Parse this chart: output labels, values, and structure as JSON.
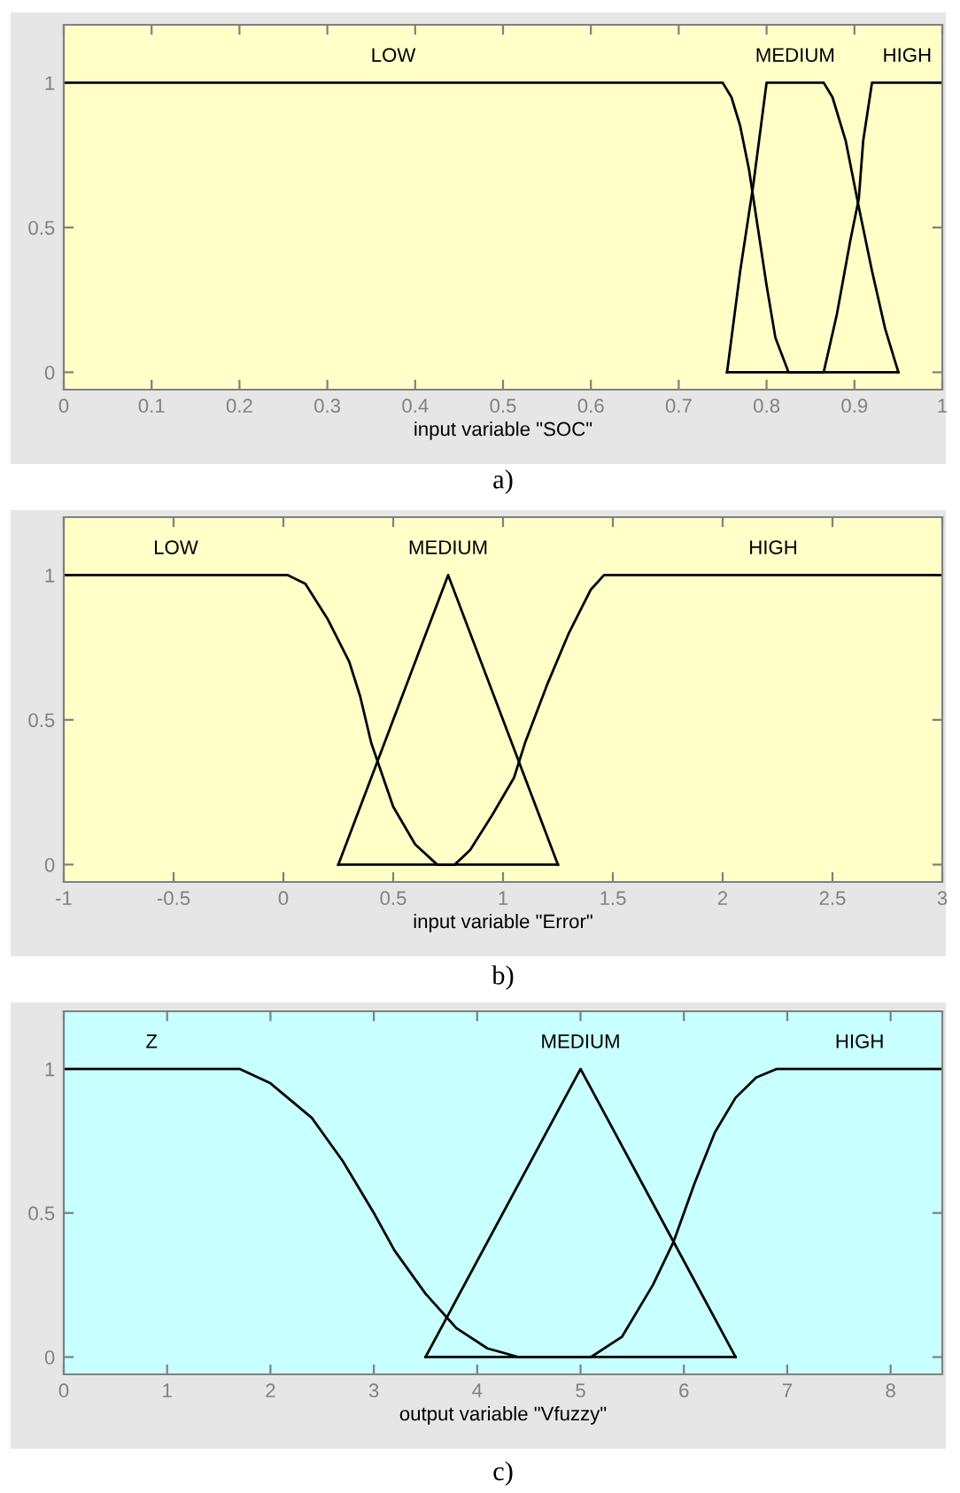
{
  "chart_data": [
    {
      "type": "line",
      "xlabel": "input variable \"SOC\"",
      "annotations": [
        "a)"
      ],
      "xlim": [
        0,
        1
      ],
      "xticks": [
        0,
        0.1,
        0.2,
        0.3,
        0.4,
        0.5,
        0.6,
        0.7,
        0.8,
        0.9,
        1
      ],
      "ylim": [
        -0.06,
        1.2
      ],
      "yticks": [
        0,
        0.5,
        1
      ],
      "grid": false,
      "legend": false,
      "series": [
        {
          "name": "LOW",
          "color": "#000000",
          "x": [
            0,
            0.75,
            0.76,
            0.77,
            0.78,
            0.79,
            0.8,
            0.81,
            0.825,
            0.95
          ],
          "values": [
            1,
            1,
            0.95,
            0.85,
            0.7,
            0.5,
            0.3,
            0.12,
            0,
            0
          ]
        },
        {
          "name": "MEDIUM",
          "color": "#000000",
          "x": [
            0.755,
            0.77,
            0.785,
            0.8,
            0.865,
            0.875,
            0.89,
            0.905,
            0.92,
            0.935,
            0.95
          ],
          "values": [
            0,
            0.35,
            0.65,
            1,
            1,
            0.95,
            0.8,
            0.57,
            0.35,
            0.15,
            0
          ]
        },
        {
          "name": "HIGH",
          "color": "#000000",
          "x": [
            0.755,
            0.865,
            0.88,
            0.895,
            0.905,
            0.91,
            0.92,
            1
          ],
          "values": [
            0,
            0,
            0.2,
            0.45,
            0.6,
            0.8,
            1,
            1
          ]
        }
      ]
    },
    {
      "type": "line",
      "xlabel": "input variable \"Error\"",
      "annotations": [
        "b)"
      ],
      "xlim": [
        -1,
        3
      ],
      "xticks": [
        -1,
        -0.5,
        0,
        0.5,
        1,
        1.5,
        2,
        2.5,
        3
      ],
      "ylim": [
        -0.06,
        1.2
      ],
      "yticks": [
        0,
        0.5,
        1
      ],
      "grid": false,
      "legend": false,
      "series": [
        {
          "name": "LOW",
          "color": "#000000",
          "x": [
            -1,
            0.02,
            0.1,
            0.2,
            0.3,
            0.35,
            0.4,
            0.5,
            0.6,
            0.7,
            1.25
          ],
          "values": [
            1,
            1,
            0.97,
            0.85,
            0.7,
            0.58,
            0.42,
            0.2,
            0.07,
            0,
            0
          ]
        },
        {
          "name": "MEDIUM",
          "color": "#000000",
          "x": [
            0.25,
            0.75,
            1.25
          ],
          "values": [
            0,
            1,
            0
          ]
        },
        {
          "name": "HIGH",
          "color": "#000000",
          "x": [
            0.25,
            0.78,
            0.85,
            0.95,
            1.05,
            1.1,
            1.2,
            1.3,
            1.4,
            1.46,
            3
          ],
          "values": [
            0,
            0,
            0.05,
            0.17,
            0.3,
            0.42,
            0.62,
            0.8,
            0.95,
            1,
            1
          ]
        }
      ]
    },
    {
      "type": "line",
      "xlabel": "output variable \"Vfuzzy\"",
      "annotations": [
        "c)"
      ],
      "xlim": [
        0,
        8.5
      ],
      "xticks": [
        0,
        1,
        2,
        3,
        4,
        5,
        6,
        7,
        8
      ],
      "ylim": [
        -0.06,
        1.2
      ],
      "yticks": [
        0,
        0.5,
        1
      ],
      "grid": false,
      "legend": false,
      "series": [
        {
          "name": "Z",
          "color": "#000000",
          "x": [
            0,
            1.7,
            2,
            2.4,
            2.7,
            3,
            3.2,
            3.5,
            3.8,
            4.1,
            4.4,
            6.5
          ],
          "values": [
            1,
            1,
            0.95,
            0.83,
            0.68,
            0.5,
            0.37,
            0.22,
            0.1,
            0.03,
            0,
            0
          ]
        },
        {
          "name": "MEDIUM",
          "color": "#000000",
          "x": [
            3.5,
            5,
            6.5
          ],
          "values": [
            0,
            1,
            0
          ]
        },
        {
          "name": "HIGH",
          "color": "#000000",
          "x": [
            3.5,
            5.1,
            5.4,
            5.7,
            5.9,
            6.1,
            6.3,
            6.5,
            6.7,
            6.9,
            8.5
          ],
          "values": [
            0,
            0,
            0.07,
            0.25,
            0.4,
            0.6,
            0.78,
            0.9,
            0.97,
            1,
            1
          ]
        }
      ]
    }
  ]
}
